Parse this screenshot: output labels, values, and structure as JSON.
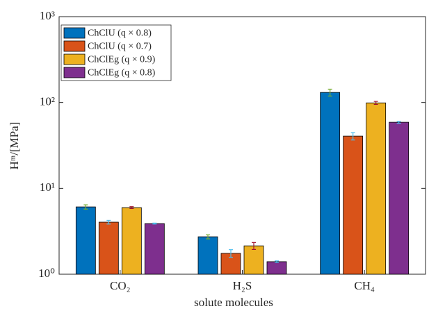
{
  "chart_data": {
    "type": "bar",
    "log_scale_y": true,
    "xlabel": "solute molecules",
    "ylabel": "Hᵐ/[MPa]",
    "categories": [
      "CO₂",
      "H₂S",
      "CH₄"
    ],
    "series": [
      {
        "name": "ChClU (q × 0.8)",
        "color": "#0072bd",
        "error_color": "#77ac30",
        "values": [
          6.08,
          2.73,
          131
        ],
        "errors": [
          0.35,
          0.15,
          12
        ]
      },
      {
        "name": "ChClU (q × 0.7)",
        "color": "#d95319",
        "error_color": "#4dbeee",
        "values": [
          4.04,
          1.75,
          40.6
        ],
        "errors": [
          0.2,
          0.18,
          4
        ]
      },
      {
        "name": "ChClEg (q × 0.9)",
        "color": "#edb120",
        "error_color": "#a2142f",
        "values": [
          5.97,
          2.14,
          99
        ],
        "errors": [
          0.15,
          0.2,
          4
        ]
      },
      {
        "name": "ChClEg (q × 0.8)",
        "color": "#7e2f8e",
        "error_color": "#4dbeee",
        "values": [
          3.89,
          1.4,
          58.9
        ],
        "errors": [
          0.05,
          0.03,
          1.5
        ]
      }
    ],
    "ylim": [
      1,
      1000
    ],
    "yticks": [
      {
        "value": 1,
        "label": "10⁰"
      },
      {
        "value": 10,
        "label": "10¹"
      },
      {
        "value": 100,
        "label": "10²"
      },
      {
        "value": 1000,
        "label": "10³"
      }
    ],
    "legend": "upper-left"
  }
}
